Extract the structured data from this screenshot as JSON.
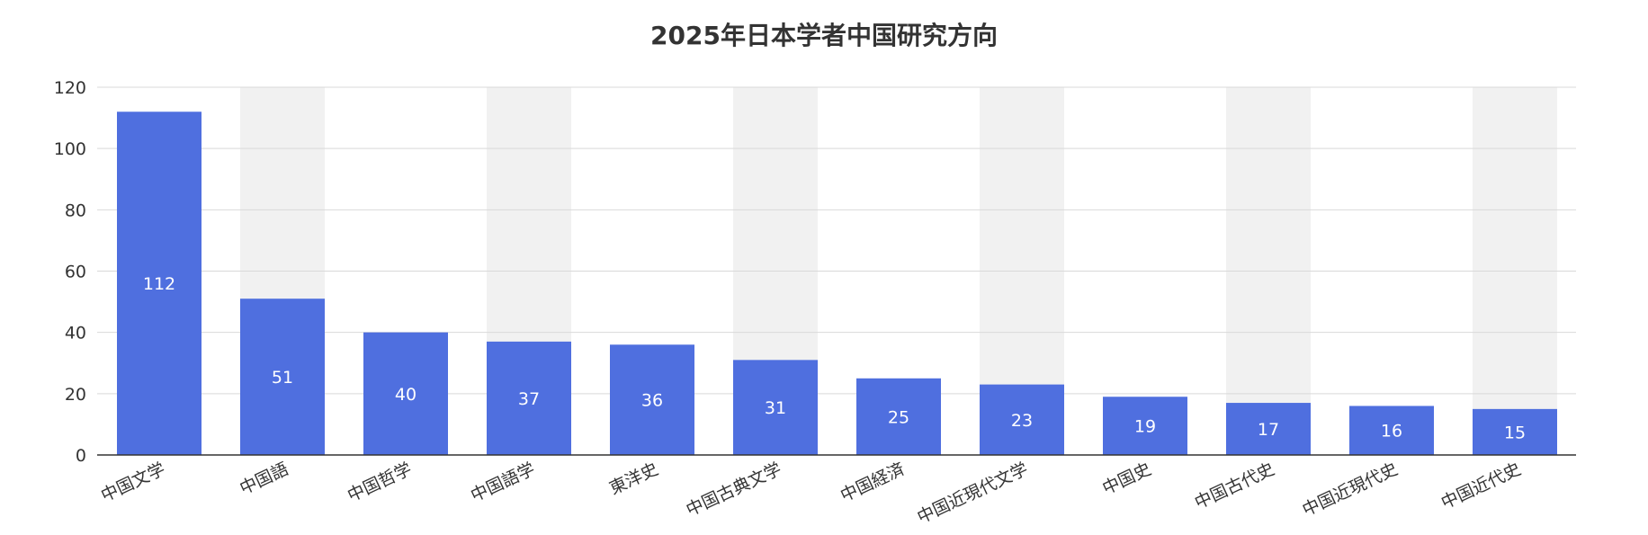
{
  "chart_data": {
    "type": "bar",
    "title": "2025年日本学者中国研究方向",
    "xlabel": "",
    "ylabel": "",
    "categories": [
      "中国文学",
      "中国語",
      "中国哲学",
      "中国語学",
      "東洋史",
      "中国古典文学",
      "中国経済",
      "中国近現代文学",
      "中国史",
      "中国古代史",
      "中国近現代史",
      "中国近代史"
    ],
    "values": [
      112,
      51,
      40,
      37,
      36,
      31,
      25,
      23,
      19,
      17,
      16,
      15
    ],
    "ylim": [
      0,
      120
    ],
    "yticks": [
      0,
      20,
      40,
      60,
      80,
      100,
      120
    ],
    "grid": true,
    "data_labels": true,
    "colors": {
      "bar": "#4f6fdf",
      "band": "#f1f1f1",
      "grid": "#d9d9d9",
      "axis": "#333333"
    }
  }
}
